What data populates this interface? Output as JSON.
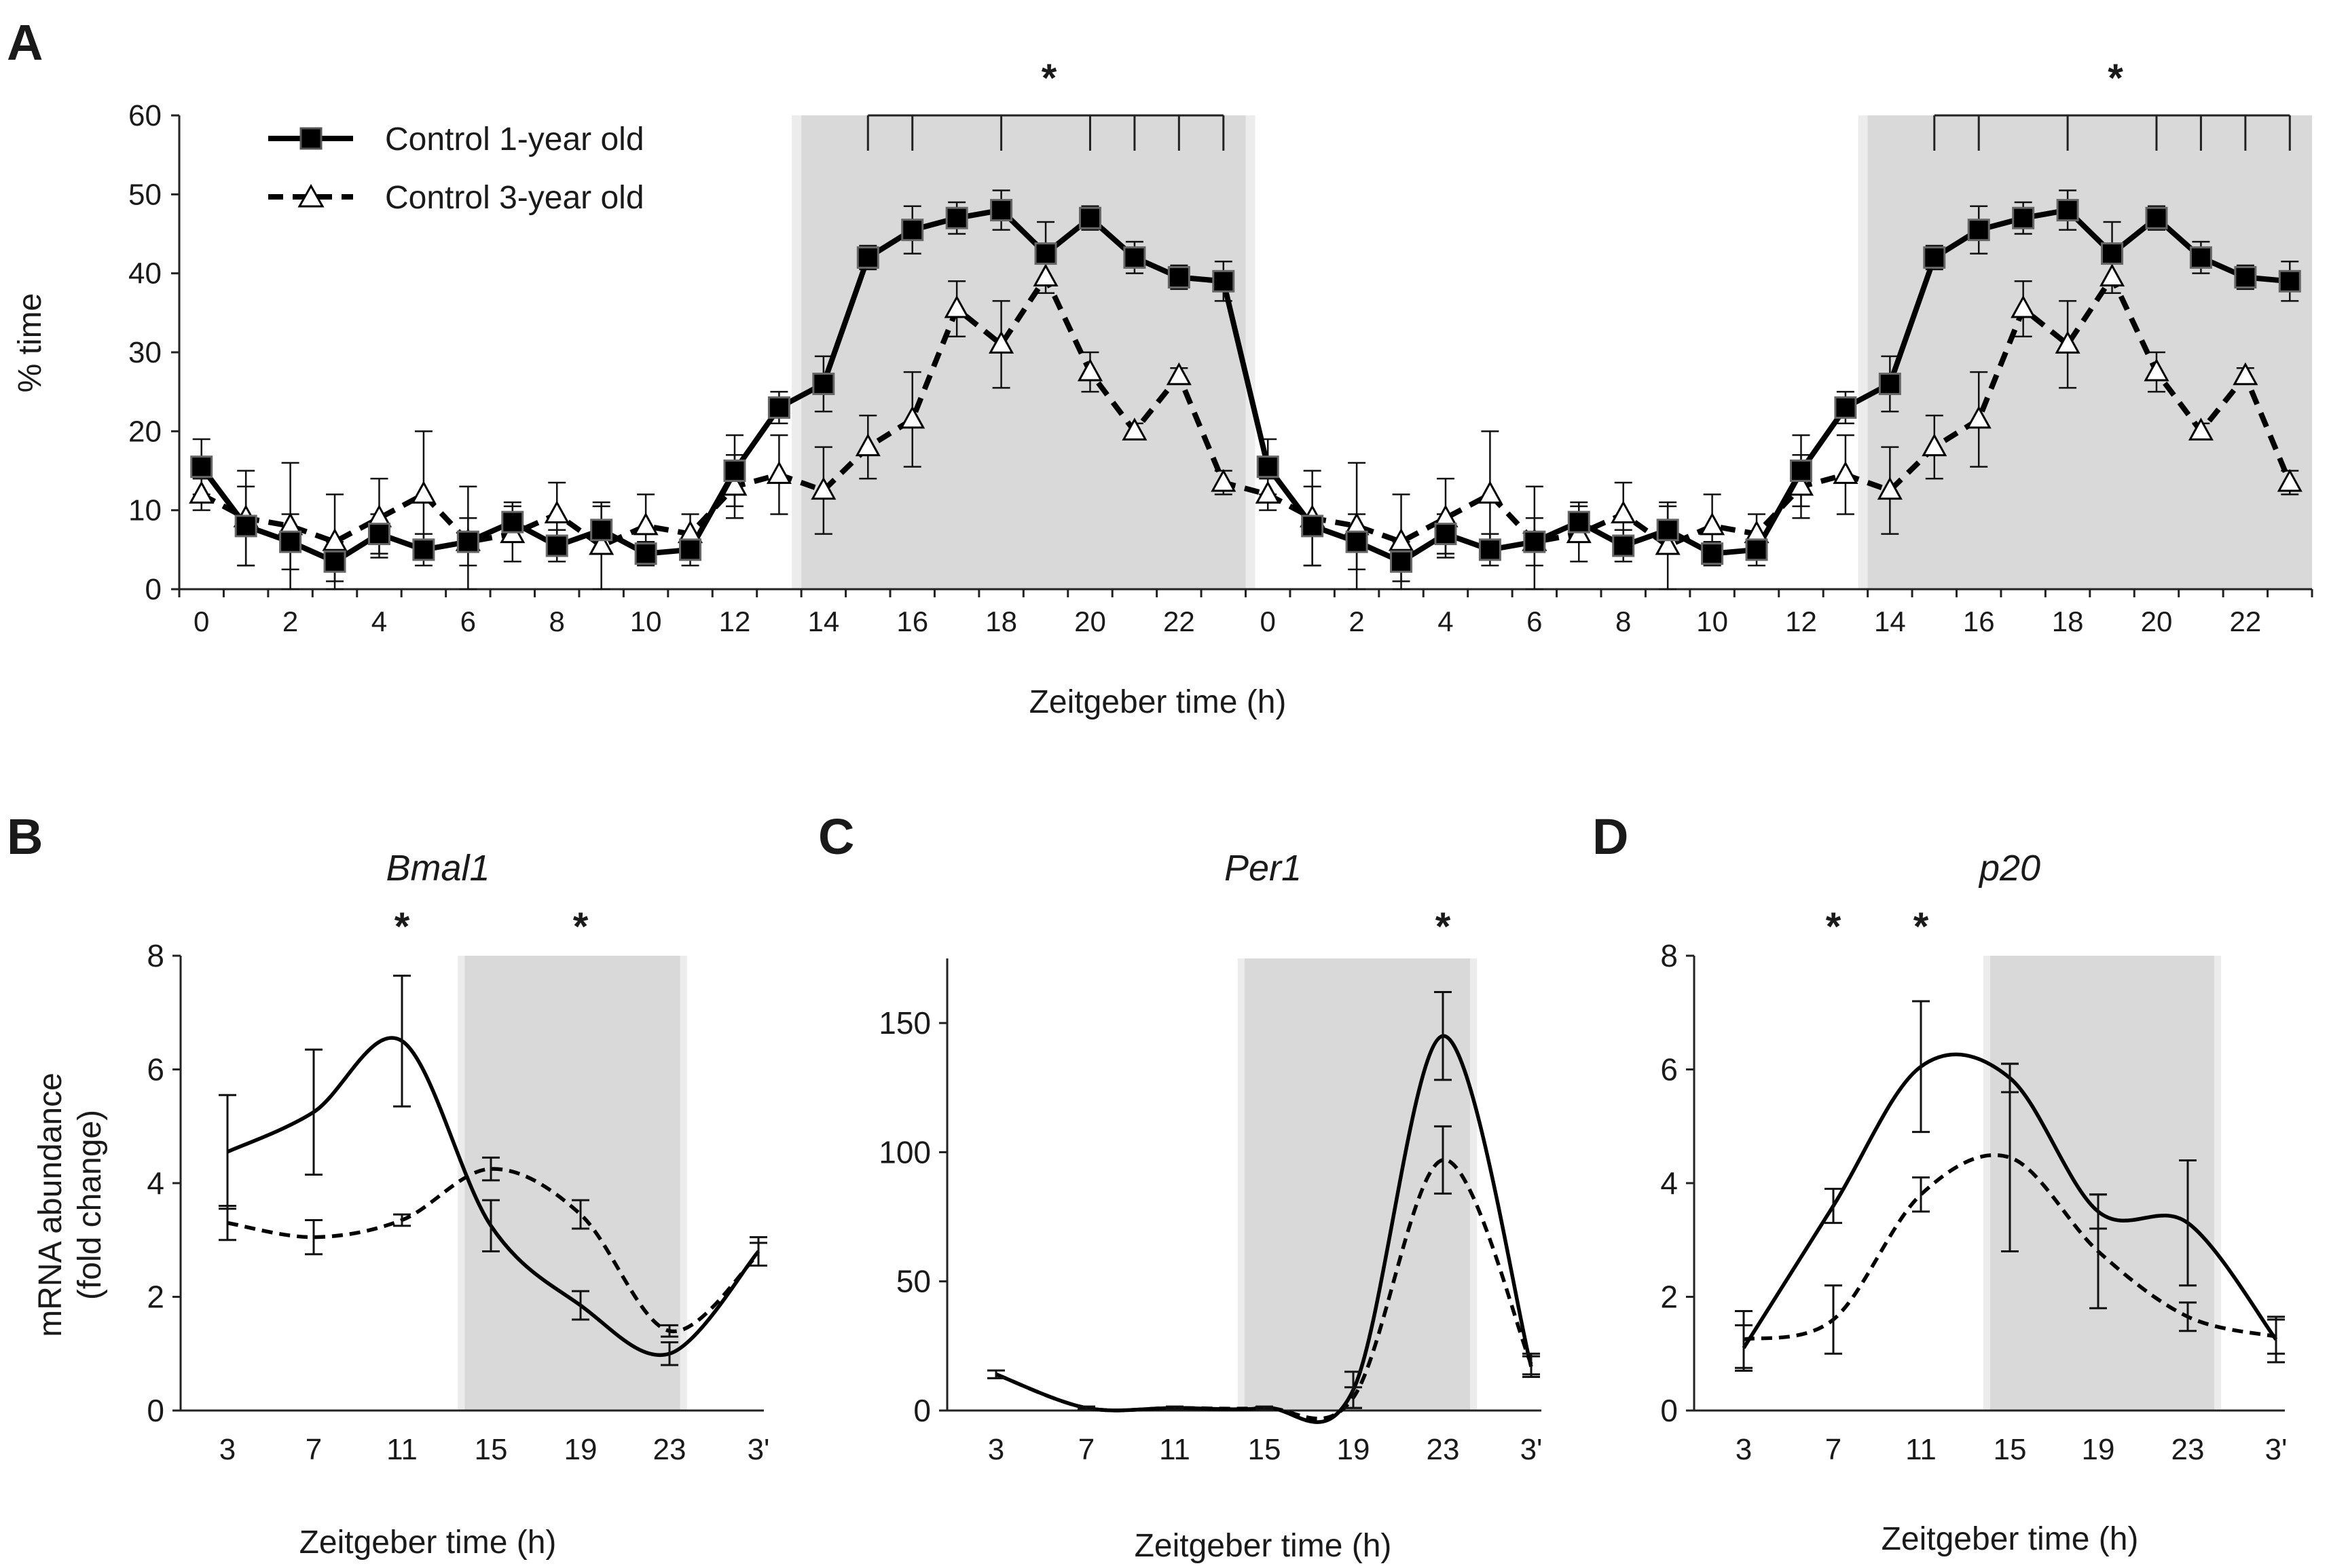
{
  "chart_data": [
    {
      "panel": "A",
      "type": "line",
      "ylabel": "% time",
      "xlabel": "Zeitgeber time (h)",
      "ylim": [
        0,
        60
      ],
      "yticks": [
        "0",
        "10",
        "20",
        "30",
        "40",
        "50",
        "60"
      ],
      "x": [
        0,
        1,
        2,
        3,
        4,
        5,
        6,
        7,
        8,
        9,
        10,
        11,
        12,
        13,
        14,
        15,
        16,
        17,
        18,
        19,
        20,
        21,
        22,
        23,
        24,
        25,
        26,
        27,
        28,
        29,
        30,
        31,
        32,
        33,
        34,
        35,
        36,
        37,
        38,
        39,
        40,
        41,
        42,
        43,
        44,
        45,
        46,
        47
      ],
      "xtick_labels": [
        "0",
        "2",
        "4",
        "6",
        "8",
        "10",
        "12",
        "14",
        "16",
        "18",
        "20",
        "22",
        "0",
        "2",
        "4",
        "6",
        "8",
        "10",
        "12",
        "14",
        "16",
        "18",
        "20",
        "22"
      ],
      "dark_periods": [
        [
          14,
          24
        ],
        [
          38,
          48
        ]
      ],
      "significance": [
        {
          "label": "*",
          "range": [
            15,
            23
          ]
        },
        {
          "label": "*",
          "range": [
            39,
            47
          ]
        }
      ],
      "series": [
        {
          "name": "Control 1-year old",
          "marker": "filled-square",
          "line": "solid",
          "values": [
            15.5,
            8,
            6,
            3.5,
            7,
            5,
            6,
            8.5,
            5.5,
            7.5,
            4.5,
            5,
            15,
            23,
            26,
            42,
            45.5,
            47,
            48,
            42.5,
            47,
            42,
            39.5,
            39,
            15.5,
            8,
            6,
            3.5,
            7,
            5,
            6,
            8.5,
            5.5,
            7.5,
            4.5,
            5,
            15,
            23,
            26,
            42,
            45.5,
            47,
            48,
            42.5,
            47,
            42,
            39.5,
            39
          ],
          "errors": [
            3.5,
            5,
            3.5,
            2.5,
            2.5,
            2,
            3,
            2.5,
            2,
            3,
            1.5,
            2,
            4.5,
            2,
            3.5,
            1.5,
            3,
            2,
            2.5,
            4,
            1.5,
            2,
            1.5,
            2.5,
            3.5,
            5,
            3.5,
            2.5,
            2.5,
            2,
            3,
            2.5,
            2,
            3,
            1.5,
            2,
            4.5,
            2,
            3.5,
            1.5,
            3,
            2,
            2.5,
            4,
            1.5,
            2,
            1.5,
            2.5
          ]
        },
        {
          "name": "Control 3-year old",
          "marker": "open-triangle",
          "line": "dashed",
          "values": [
            12,
            9,
            8,
            6,
            9,
            12,
            6,
            7,
            9.5,
            5.5,
            8,
            7,
            13,
            14.5,
            12.5,
            18,
            21.5,
            35.5,
            31,
            39.5,
            27.5,
            20,
            27,
            13.5,
            12,
            9,
            8,
            6,
            9,
            12,
            6,
            7,
            9.5,
            5.5,
            8,
            7,
            13,
            14.5,
            12.5,
            18,
            21.5,
            35.5,
            31,
            39.5,
            27.5,
            20,
            27,
            13.5
          ],
          "errors": [
            2,
            6,
            8,
            6,
            5,
            8,
            7,
            3.5,
            4,
            5.5,
            4,
            2.5,
            4,
            5,
            5.5,
            4,
            6,
            3.5,
            5.5,
            2,
            2.5,
            1,
            1,
            1.5,
            2,
            6,
            8,
            6,
            5,
            8,
            7,
            3.5,
            4,
            5.5,
            4,
            2.5,
            4,
            5,
            5.5,
            4,
            6,
            3.5,
            5.5,
            2,
            2.5,
            1,
            1,
            1.5
          ]
        }
      ]
    },
    {
      "panel": "B",
      "type": "line",
      "title": "Bmal1",
      "ylabel": "mRNA abundance (fold change)",
      "xlabel": "Zeitgeber  time (h)",
      "categories": [
        "3",
        "7",
        "11",
        "15",
        "19",
        "23",
        "3'"
      ],
      "ylim": [
        0,
        8
      ],
      "yticks": [
        "0",
        "2",
        "4",
        "6",
        "8"
      ],
      "dark_period": [
        14,
        24
      ],
      "significance": [
        {
          "label": "*",
          "at": "11"
        },
        {
          "label": "*",
          "at": "19"
        }
      ],
      "series": [
        {
          "name": "Control 1-year old",
          "line": "solid",
          "values": [
            4.55,
            5.25,
            6.5,
            3.25,
            1.85,
            1.0,
            2.8
          ],
          "errors": [
            1.0,
            1.1,
            1.15,
            0.45,
            0.25,
            0.2,
            0.25
          ]
        },
        {
          "name": "Control 3-year old",
          "line": "dashed",
          "values": [
            3.3,
            3.05,
            3.35,
            4.25,
            3.45,
            1.4,
            2.75
          ],
          "errors": [
            0.3,
            0.3,
            0.1,
            0.2,
            0.25,
            0.1,
            0.2
          ]
        }
      ]
    },
    {
      "panel": "C",
      "type": "line",
      "title": "Per1",
      "xlabel": "Zeitgeber  time (h)",
      "categories": [
        "3",
        "7",
        "11",
        "15",
        "19",
        "23",
        "3'"
      ],
      "ylim": [
        0,
        175
      ],
      "yticks": [
        "0",
        "50",
        "100",
        "150"
      ],
      "dark_period": [
        14,
        24
      ],
      "significance": [
        {
          "label": "*",
          "at": "23"
        }
      ],
      "series": [
        {
          "name": "Control 1-year old",
          "line": "solid",
          "values": [
            14,
            1,
            1,
            1,
            8,
            145,
            17
          ],
          "errors": [
            1.5,
            0.5,
            0.5,
            0.5,
            7,
            17,
            4
          ]
        },
        {
          "name": "Control 3-year old",
          "line": "dashed",
          "values": [
            14,
            1,
            1,
            1,
            5,
            97,
            18
          ],
          "errors": [
            1.5,
            0.5,
            0.5,
            0.5,
            4,
            13,
            4
          ]
        }
      ]
    },
    {
      "panel": "D",
      "type": "line",
      "title": "p20",
      "xlabel": "Zeitgeber time (h)",
      "categories": [
        "3",
        "7",
        "11",
        "15",
        "19",
        "23",
        "3'"
      ],
      "ylim": [
        0,
        8
      ],
      "yticks": [
        "0",
        "2",
        "4",
        "6",
        "8"
      ],
      "dark_period": [
        14,
        24
      ],
      "significance": [
        {
          "label": "*",
          "at": "7"
        },
        {
          "label": "*",
          "at": "11"
        }
      ],
      "series": [
        {
          "name": "Control 1-year old",
          "line": "solid",
          "values": [
            1.1,
            3.6,
            6.05,
            5.85,
            3.5,
            3.3,
            1.25
          ],
          "errors": [
            0.4,
            0.3,
            1.15,
            0.25,
            0.3,
            1.1,
            0.4
          ]
        },
        {
          "name": "Control 3-year old",
          "line": "dashed",
          "values": [
            1.25,
            1.6,
            3.8,
            4.45,
            2.8,
            1.65,
            1.3
          ],
          "errors": [
            0.5,
            0.6,
            0.3,
            1.65,
            1.0,
            0.25,
            0.3
          ]
        }
      ]
    }
  ]
}
